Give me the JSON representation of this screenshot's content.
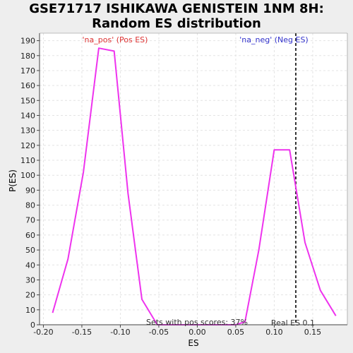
{
  "chart_data": {
    "type": "line",
    "title_lines": [
      "GSE71717 ISHIKAWA GENISTEIN 1NM 8H:",
      "Random ES distribution"
    ],
    "xlabel": "ES",
    "ylabel": "P(ES)",
    "xlim": [
      -0.205,
      0.195
    ],
    "ylim": [
      0,
      195
    ],
    "xticks": [
      -0.2,
      -0.15,
      -0.1,
      -0.05,
      0.0,
      0.05,
      0.1,
      0.15
    ],
    "xtick_labels": [
      "-0.20",
      "-0.15",
      "-0.10",
      "-0.05",
      "0.00",
      "0.05",
      "0.10",
      "0.15"
    ],
    "yticks": [
      0,
      10,
      20,
      30,
      40,
      50,
      60,
      70,
      80,
      90,
      100,
      110,
      120,
      130,
      140,
      150,
      160,
      170,
      180,
      190
    ],
    "grid": true,
    "series": [
      {
        "color": "#ee33ee",
        "x": [
          -0.188,
          -0.168,
          -0.148,
          -0.128,
          -0.108,
          -0.09,
          -0.072,
          -0.052,
          -0.032,
          0.0,
          0.05,
          0.062,
          0.08,
          0.1,
          0.12,
          0.128,
          0.14,
          0.16,
          0.18
        ],
        "y": [
          8,
          44,
          102,
          185,
          183,
          88,
          17,
          0,
          0,
          0,
          0,
          2,
          50,
          117,
          117,
          92,
          55,
          23,
          6
        ]
      }
    ],
    "vline": {
      "x": 0.128,
      "color": "#333333",
      "style": "dashed"
    },
    "annotations": {
      "pos_label": {
        "text": "'na_pos' (Pos ES)",
        "color": "#dd3333"
      },
      "neg_label": {
        "text": "'na_neg' (Neg ES)",
        "color": "#3333cc"
      },
      "pos_scores": {
        "text": "Sets with pos scores: 37%",
        "color": "#333333"
      },
      "real_es": {
        "text": "Real ES 0.1",
        "color": "#333333"
      }
    }
  }
}
